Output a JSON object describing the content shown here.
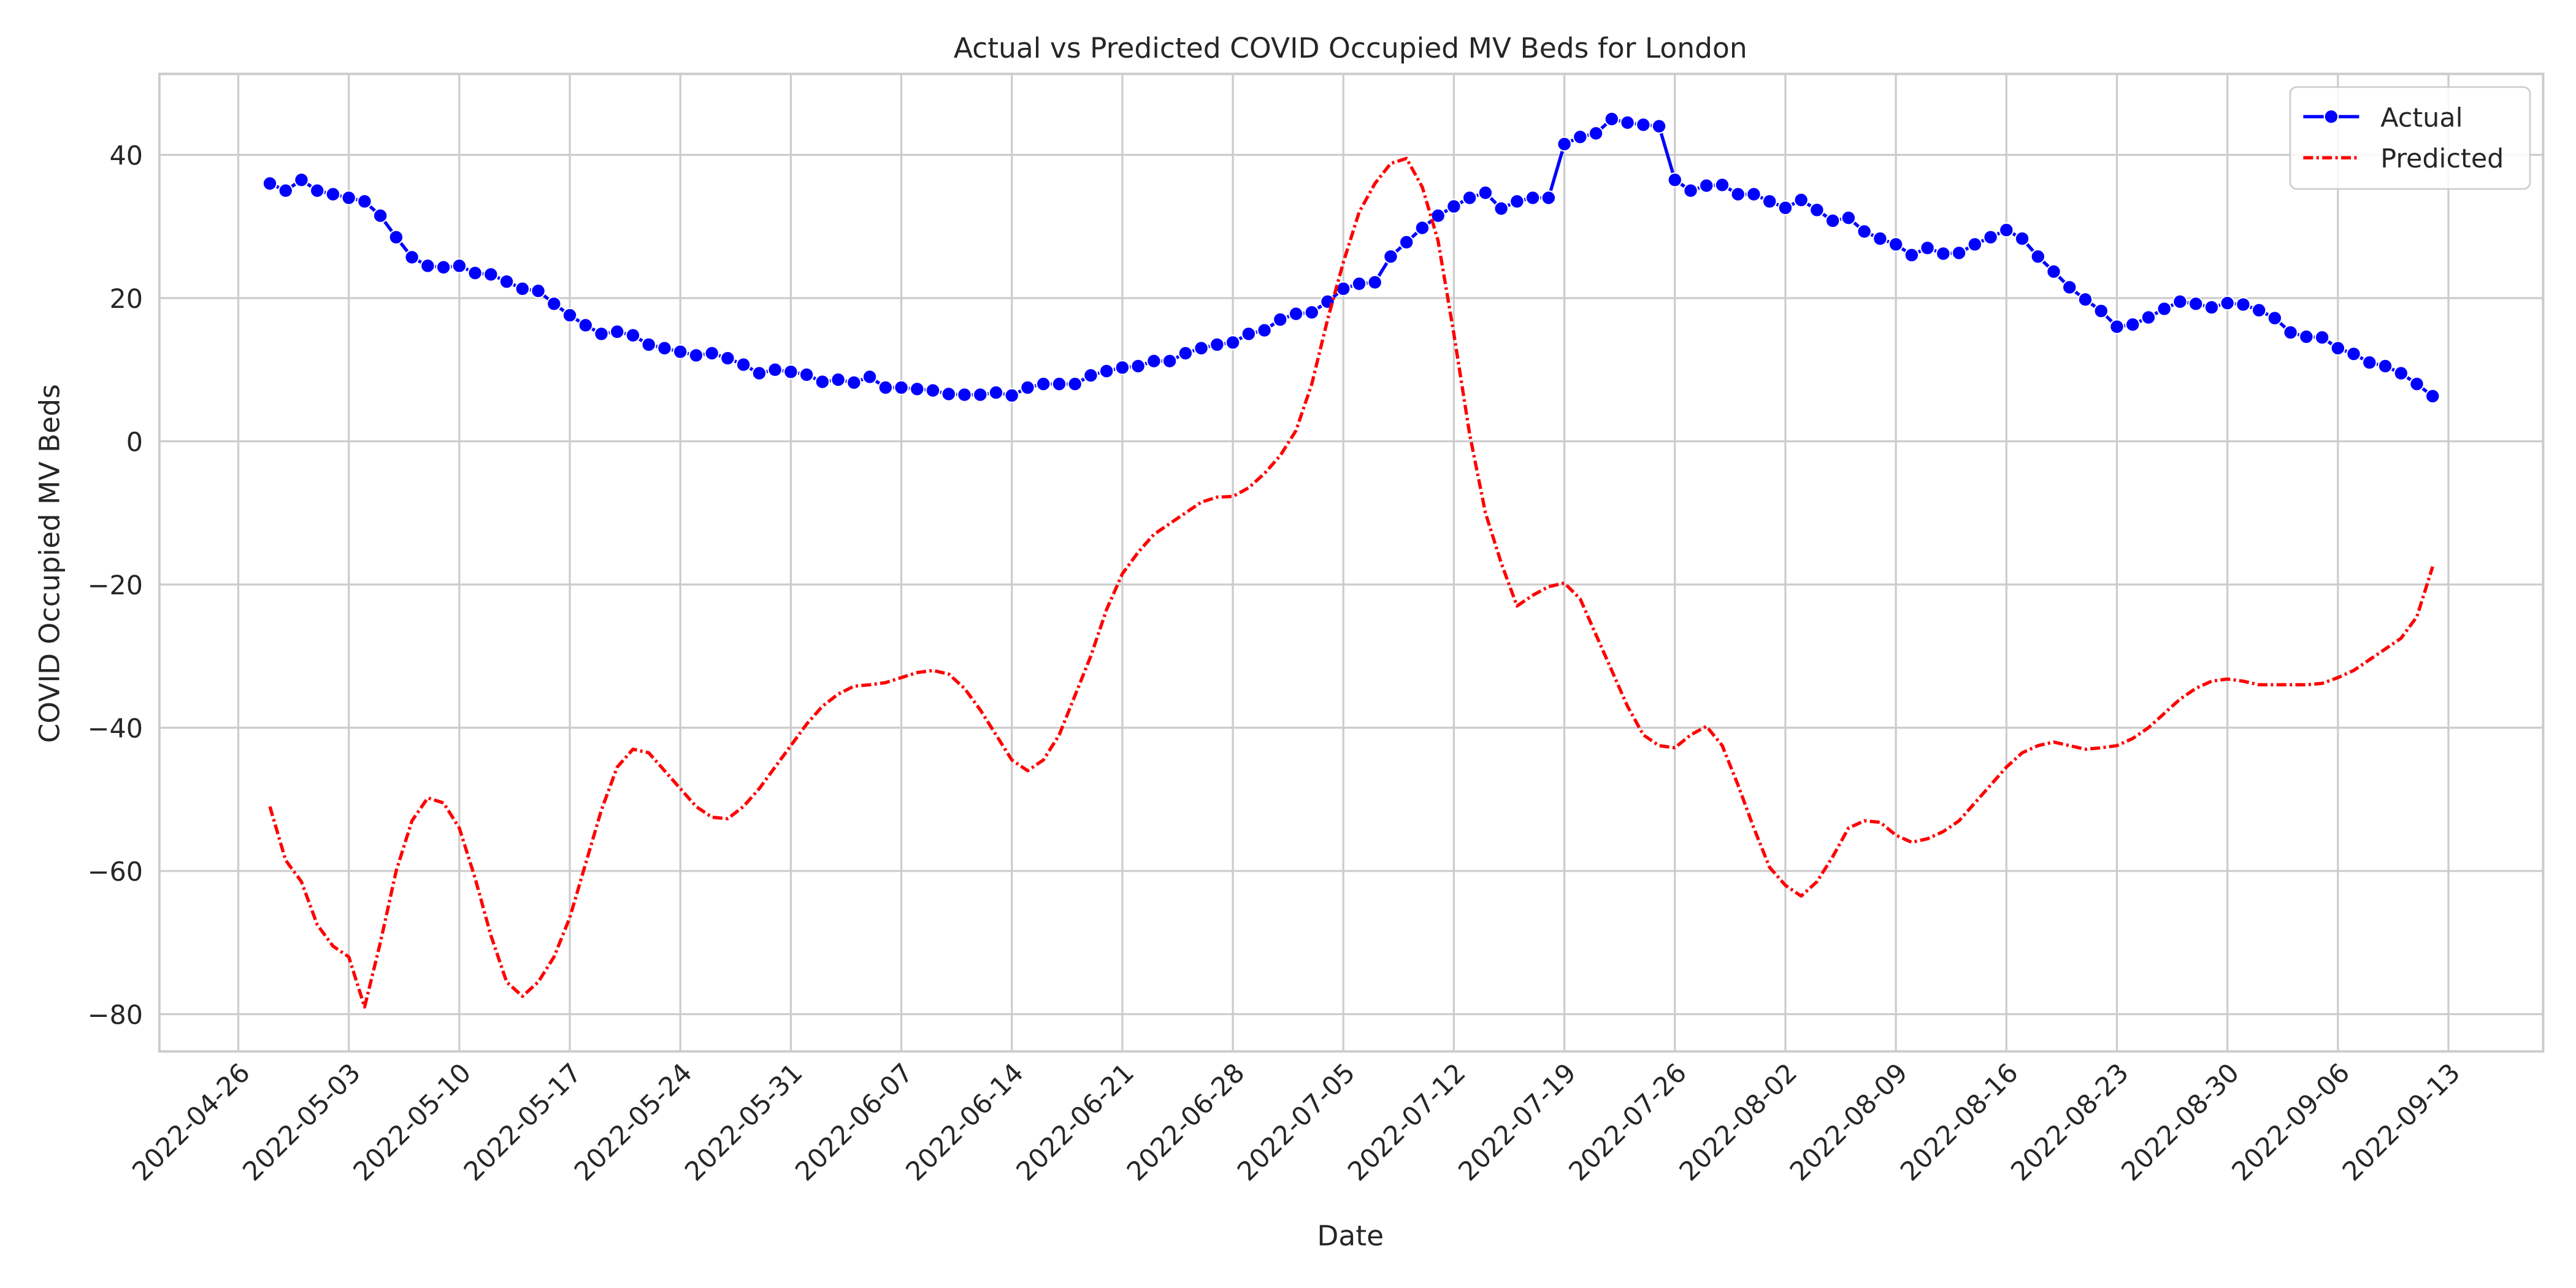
{
  "chart_data": {
    "type": "line",
    "title": "Actual vs Predicted COVID Occupied MV Beds for London",
    "x_label": "Date",
    "y_label": "COVID Occupied MV Beds",
    "x": [
      "2022-04-28",
      "2022-04-29",
      "2022-04-30",
      "2022-05-01",
      "2022-05-02",
      "2022-05-03",
      "2022-05-04",
      "2022-05-05",
      "2022-05-06",
      "2022-05-07",
      "2022-05-08",
      "2022-05-09",
      "2022-05-10",
      "2022-05-11",
      "2022-05-12",
      "2022-05-13",
      "2022-05-14",
      "2022-05-15",
      "2022-05-16",
      "2022-05-17",
      "2022-05-18",
      "2022-05-19",
      "2022-05-20",
      "2022-05-21",
      "2022-05-22",
      "2022-05-23",
      "2022-05-24",
      "2022-05-25",
      "2022-05-26",
      "2022-05-27",
      "2022-05-28",
      "2022-05-29",
      "2022-05-30",
      "2022-05-31",
      "2022-06-01",
      "2022-06-02",
      "2022-06-03",
      "2022-06-04",
      "2022-06-05",
      "2022-06-06",
      "2022-06-07",
      "2022-06-08",
      "2022-06-09",
      "2022-06-10",
      "2022-06-11",
      "2022-06-12",
      "2022-06-13",
      "2022-06-14",
      "2022-06-15",
      "2022-06-16",
      "2022-06-17",
      "2022-06-18",
      "2022-06-19",
      "2022-06-20",
      "2022-06-21",
      "2022-06-22",
      "2022-06-23",
      "2022-06-24",
      "2022-06-25",
      "2022-06-26",
      "2022-06-27",
      "2022-06-28",
      "2022-06-29",
      "2022-06-30",
      "2022-07-01",
      "2022-07-02",
      "2022-07-03",
      "2022-07-04",
      "2022-07-05",
      "2022-07-06",
      "2022-07-07",
      "2022-07-08",
      "2022-07-09",
      "2022-07-10",
      "2022-07-11",
      "2022-07-12",
      "2022-07-13",
      "2022-07-14",
      "2022-07-15",
      "2022-07-16",
      "2022-07-17",
      "2022-07-18",
      "2022-07-19",
      "2022-07-20",
      "2022-07-21",
      "2022-07-22",
      "2022-07-23",
      "2022-07-24",
      "2022-07-25",
      "2022-07-26",
      "2022-07-27",
      "2022-07-28",
      "2022-07-29",
      "2022-07-30",
      "2022-07-31",
      "2022-08-01",
      "2022-08-02",
      "2022-08-03",
      "2022-08-04",
      "2022-08-05",
      "2022-08-06",
      "2022-08-07",
      "2022-08-08",
      "2022-08-09",
      "2022-08-10",
      "2022-08-11",
      "2022-08-12",
      "2022-08-13",
      "2022-08-14",
      "2022-08-15",
      "2022-08-16",
      "2022-08-17",
      "2022-08-18",
      "2022-08-19",
      "2022-08-20",
      "2022-08-21",
      "2022-08-22",
      "2022-08-23",
      "2022-08-24",
      "2022-08-25",
      "2022-08-26",
      "2022-08-27",
      "2022-08-28",
      "2022-08-29",
      "2022-08-30",
      "2022-08-31",
      "2022-09-01",
      "2022-09-02",
      "2022-09-03",
      "2022-09-04",
      "2022-09-05",
      "2022-09-06",
      "2022-09-07",
      "2022-09-08",
      "2022-09-09",
      "2022-09-10",
      "2022-09-11",
      "2022-09-12"
    ],
    "series": [
      {
        "name": "Actual",
        "color": "blue",
        "linestyle": "solid",
        "marker": "o",
        "values": [
          36,
          35,
          36.5,
          35,
          34.5,
          34,
          33.5,
          31.5,
          28.5,
          25.7,
          24.5,
          24.3,
          24.5,
          23.5,
          23.3,
          22.3,
          21.3,
          21,
          19.2,
          17.6,
          16.2,
          15,
          15.3,
          14.8,
          13.5,
          13,
          12.5,
          12,
          12.3,
          11.6,
          10.7,
          9.5,
          10,
          9.7,
          9.3,
          8.3,
          8.6,
          8.2,
          9,
          7.5,
          7.5,
          7.3,
          7.1,
          6.6,
          6.5,
          6.5,
          6.8,
          6.4,
          7.5,
          8,
          8,
          8,
          9.2,
          9.8,
          10.3,
          10.5,
          11.2,
          11.2,
          12.3,
          13,
          13.5,
          13.8,
          15,
          15.5,
          17,
          17.8,
          18,
          19.5,
          21.3,
          22,
          22.2,
          25.8,
          27.8,
          29.8,
          31.5,
          32.8,
          34,
          34.7,
          32.5,
          33.5,
          34,
          34,
          41.5,
          42.5,
          43,
          45,
          44.5,
          44.2,
          44,
          36.5,
          35,
          35.7,
          35.8,
          34.5,
          34.5,
          33.5,
          32.6,
          33.7,
          32.3,
          30.8,
          31.2,
          29.3,
          28.3,
          27.5,
          26,
          27,
          26.2,
          26.3,
          27.5,
          28.5,
          29.5,
          28.3,
          25.8,
          23.7,
          21.5,
          19.8,
          18.2,
          16,
          16.3,
          17.3,
          18.5,
          19.5,
          19.2,
          18.7,
          19.3,
          19.1,
          18.3,
          17.2,
          15.2,
          14.6,
          14.5,
          13,
          12.2,
          11,
          10.5,
          9.5,
          8,
          6.3
        ]
      },
      {
        "name": "Predicted",
        "color": "red",
        "linestyle": "dashdot",
        "values": [
          -51,
          -58.5,
          -61.5,
          -67.5,
          -70.5,
          -72,
          -79,
          -70,
          -60,
          -53,
          -49.8,
          -50.5,
          -54,
          -61,
          -69,
          -75.5,
          -77.5,
          -75.5,
          -72,
          -66.5,
          -59,
          -51.5,
          -45.5,
          -43,
          -43.5,
          -46,
          -48.5,
          -51,
          -52.5,
          -52.7,
          -51,
          -48.5,
          -45.5,
          -42.5,
          -39.5,
          -37,
          -35.3,
          -34.2,
          -34,
          -33.7,
          -33,
          -32.3,
          -32,
          -32.5,
          -34.5,
          -37.5,
          -41,
          -44.5,
          -46,
          -44.5,
          -41,
          -35.5,
          -30,
          -23.5,
          -18.5,
          -15.5,
          -13,
          -11.5,
          -10,
          -8.5,
          -7.8,
          -7.7,
          -6.5,
          -4.5,
          -2,
          1.5,
          8,
          17,
          25,
          32,
          36,
          38.8,
          39.5,
          35.5,
          28,
          15,
          1,
          -10,
          -17,
          -23,
          -21.5,
          -20.3,
          -19.8,
          -22,
          -27,
          -32,
          -37,
          -41,
          -42.5,
          -42.8,
          -41,
          -39.8,
          -42.5,
          -48,
          -54,
          -59.5,
          -62,
          -63.5,
          -61.5,
          -58,
          -54,
          -53,
          -53.2,
          -55,
          -56,
          -55.5,
          -54.5,
          -53,
          -50.5,
          -48,
          -45.5,
          -43.5,
          -42.5,
          -42,
          -42.5,
          -43,
          -42.8,
          -42.5,
          -41.5,
          -40,
          -38,
          -36,
          -34.5,
          -33.5,
          -33.2,
          -33.5,
          -34,
          -34,
          -34,
          -34,
          -33.8,
          -33,
          -32,
          -30.5,
          -29,
          -27.5,
          -24.5,
          -17.5
        ]
      }
    ],
    "xlim": [
      "2022-04-21",
      "2022-09-19"
    ],
    "xticks": [
      "2022-04-26",
      "2022-05-03",
      "2022-05-10",
      "2022-05-17",
      "2022-05-24",
      "2022-05-31",
      "2022-06-07",
      "2022-06-14",
      "2022-06-21",
      "2022-06-28",
      "2022-07-05",
      "2022-07-12",
      "2022-07-19",
      "2022-07-26",
      "2022-08-02",
      "2022-08-09",
      "2022-08-16",
      "2022-08-23",
      "2022-08-30",
      "2022-09-06",
      "2022-09-13"
    ],
    "ylim": [
      -85.2,
      51.3
    ],
    "yticks": [
      {
        "value": -80,
        "label": "−80"
      },
      {
        "value": -60,
        "label": "−60"
      },
      {
        "value": -40,
        "label": "−40"
      },
      {
        "value": -20,
        "label": "−20"
      },
      0,
      20,
      40
    ],
    "grid": true,
    "legend": "upper right"
  }
}
